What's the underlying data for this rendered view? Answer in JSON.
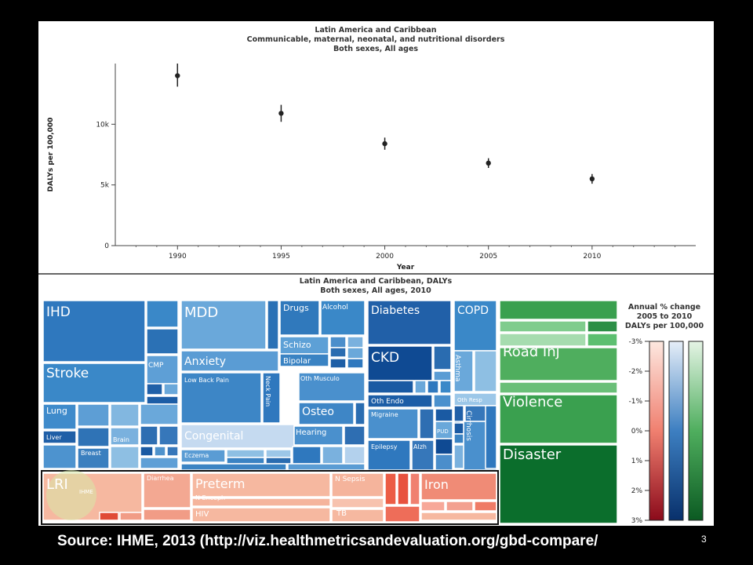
{
  "source_text": "Source: IHME, 2013 (http://viz.healthmetricsandevaluation.org/gbd-compare/",
  "page_number": "3",
  "chart_data": [
    {
      "type": "scatter",
      "title": [
        "Latin America and Caribbean",
        "Communicable, maternal, neonatal, and nutritional disorders",
        "Both sexes, All ages"
      ],
      "xlabel": "Year",
      "ylabel": "DALYs per 100,000",
      "xlim": [
        1987,
        2015
      ],
      "ylim": [
        0,
        15000
      ],
      "x_ticks": [
        "1990",
        "1995",
        "2000",
        "2005",
        "2010"
      ],
      "y_ticks": [
        {
          "value": 0,
          "label": "0"
        },
        {
          "value": 5000,
          "label": "5k"
        },
        {
          "value": 10000,
          "label": "10k"
        }
      ],
      "points": [
        {
          "x": 1990,
          "y": 14000,
          "lo": 13100,
          "hi": 15000
        },
        {
          "x": 1995,
          "y": 10900,
          "lo": 10200,
          "hi": 11600
        },
        {
          "x": 2000,
          "y": 8400,
          "lo": 7900,
          "hi": 8900
        },
        {
          "x": 2005,
          "y": 6800,
          "lo": 6400,
          "hi": 7200
        },
        {
          "x": 2010,
          "y": 5500,
          "lo": 5100,
          "hi": 5900
        }
      ]
    },
    {
      "type": "treemap",
      "title": [
        "Latin America and Caribbean, DALYs",
        "Both sexes, All ages, 2010"
      ],
      "legend": {
        "title": [
          "Annual % change",
          "2005 to 2010",
          "DALYs per 100,000"
        ],
        "ticks": [
          "-3%",
          "-2%",
          "-1%",
          "0%",
          "1%",
          "2%",
          "3%"
        ]
      },
      "labels": [
        "IHD",
        "Stroke",
        "CMP",
        "Lung",
        "Liver",
        "Breast",
        "Brain",
        "MDD",
        "Anxiety",
        "Low Back Pain",
        "Neck Pain",
        "Drugs",
        "Alcohol",
        "Schizo",
        "Bipolar",
        "Oth Musculo",
        "Osteo",
        "Congenital",
        "Hearing",
        "Eczema",
        "Diabetes",
        "CKD",
        "Oth Endo",
        "Migraine",
        "Epilepsy",
        "Alzh",
        "PUD",
        "COPD",
        "Asthma",
        "Oth Resp",
        "Cirrhosis",
        "Road Inj",
        "Violence",
        "Disaster",
        "LRI",
        "Diarrhea",
        "Preterm",
        "N Enceph",
        "HIV",
        "N Sepsis",
        "TB",
        "Iron"
      ],
      "watermark": "IHME"
    }
  ]
}
